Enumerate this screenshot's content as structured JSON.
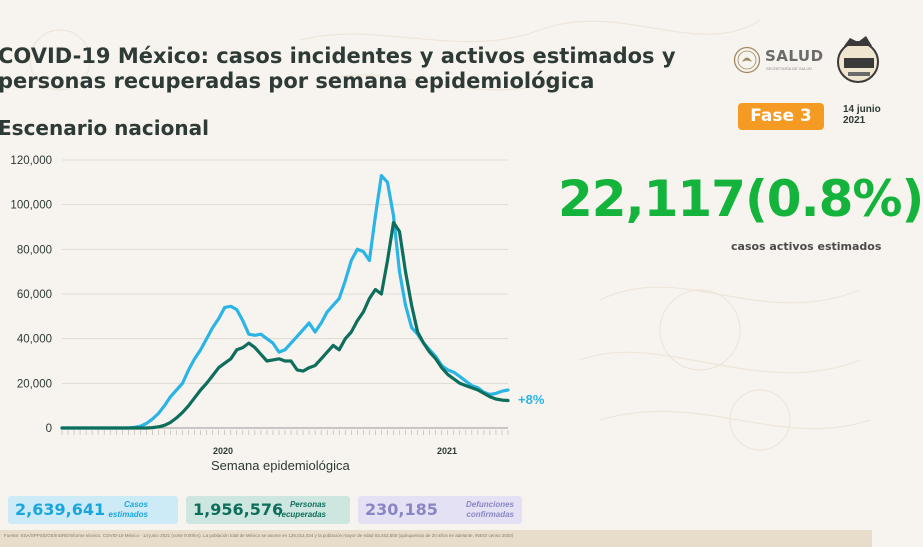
{
  "header": {
    "title_line1": "COVID-19 México: casos incidentes y activos estimados y",
    "title_line2": "personas recuperadas por semana epidemiológica",
    "subtitle": "Escenario nacional",
    "salud": "SALUD",
    "salud_sub": "SECRETARÍA DE SALUD",
    "fase": "Fase 3",
    "date": "14 junio\n2021"
  },
  "highlight": {
    "value": "22,117(0.8%)",
    "caption": "casos activos estimados"
  },
  "stats": [
    {
      "value": "2,639,641",
      "label": "Casos\nestimados"
    },
    {
      "value": "1,956,576",
      "label": "Personas\nrecuperadas"
    },
    {
      "value": "230,185",
      "label": "Defunciones\nconfirmadas"
    }
  ],
  "footer": "Fuente: SSA/SPPS/DGE/InDRE/Informe técnico. COVID-19 México - 14 junio 2021 (corte 9:00hrs). La población total de México se asume en 126,014,024 y la población mayor de edad 83,452,550 (quinquenios de 20 años en adelante, INEGI censo 2020)",
  "colors": {
    "incident": "#2bb4e6",
    "active": "#0e6e5c",
    "highlight": "#14b33b",
    "fase": "#f59a23"
  },
  "chart_data": {
    "type": "line",
    "xlabel": "Semana epidemiológica",
    "year_labels": [
      "2020",
      "2021"
    ],
    "ylim": [
      0,
      120000
    ],
    "yticks": [
      0,
      20000,
      40000,
      60000,
      80000,
      100000,
      120000
    ],
    "ytick_labels": [
      "0",
      "20,000",
      "40,000",
      "60,000",
      "80,000",
      "100,000",
      "120,000"
    ],
    "annotation": "+8%",
    "series": [
      {
        "key": "incident",
        "values": [
          0,
          0,
          0,
          0,
          0,
          0,
          0,
          0,
          0,
          0,
          0,
          0,
          300,
          800,
          2000,
          4000,
          6500,
          10000,
          14000,
          17000,
          20000,
          26000,
          31000,
          35000,
          40000,
          45000,
          49000,
          54000,
          54500,
          53000,
          48000,
          42000,
          41500,
          42000,
          40000,
          38000,
          34000,
          35000,
          38000,
          41000,
          44000,
          47000,
          43000,
          47000,
          52000,
          55000,
          58000,
          66000,
          75000,
          80000,
          79000,
          75000,
          95000,
          113000,
          110000,
          95000,
          70000,
          55000,
          45000,
          42000,
          38000,
          35000,
          32000,
          28000,
          26000,
          25000,
          23000,
          21000,
          19000,
          18000,
          16000,
          15000,
          15500,
          16500,
          17000
        ]
      },
      {
        "key": "active",
        "values": [
          0,
          0,
          0,
          0,
          0,
          0,
          0,
          0,
          0,
          0,
          0,
          0,
          0,
          0,
          0,
          200,
          500,
          1200,
          2500,
          4500,
          7000,
          10000,
          13500,
          17000,
          20000,
          23500,
          27000,
          29000,
          31000,
          35000,
          36000,
          38000,
          36000,
          33000,
          30000,
          30500,
          31000,
          30000,
          30000,
          26000,
          25500,
          27000,
          28000,
          31000,
          34000,
          37000,
          35000,
          40000,
          43000,
          48000,
          52000,
          58000,
          62000,
          60000,
          75000,
          92000,
          88000,
          70000,
          55000,
          43000,
          38000,
          34000,
          31000,
          27000,
          24000,
          22000,
          20000,
          19000,
          18000,
          17000,
          15500,
          14000,
          13000,
          12500,
          12300
        ]
      }
    ]
  }
}
